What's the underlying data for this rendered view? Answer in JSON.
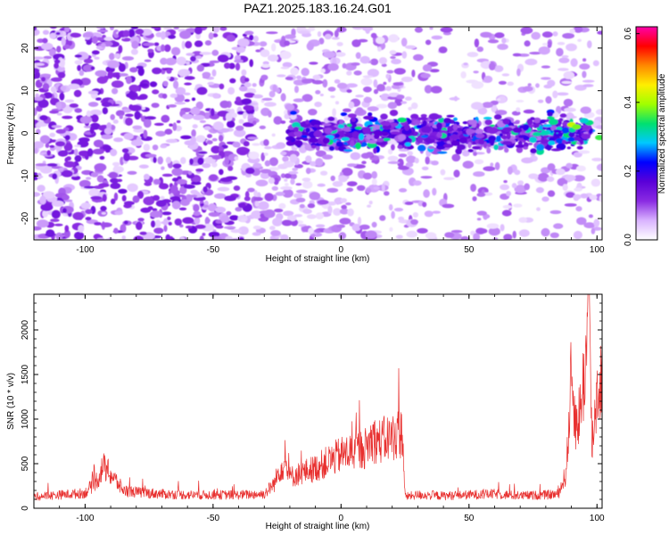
{
  "title": "PAZ1.2025.183.16.24.G01",
  "chart_data": [
    {
      "type": "heatmap",
      "xlabel": "Height of straight line (km)",
      "ylabel": "Frequency (Hz)",
      "xlim": [
        -120,
        102
      ],
      "ylim": [
        -25,
        25
      ],
      "xticks": [
        -100,
        -50,
        0,
        50,
        100
      ],
      "yticks": [
        -20,
        -10,
        0,
        10,
        20
      ],
      "colorbar": {
        "label": "Normalized spectral amplitude",
        "range": [
          0.0,
          0.62
        ],
        "ticks": [
          "0.0",
          "0.2",
          "0.4",
          "0.6"
        ],
        "colormap": [
          "#ffffff",
          "#d9b3ff",
          "#8a2be2",
          "#5a00d8",
          "#0000ff",
          "#00c8ff",
          "#00e070",
          "#a0ff00",
          "#ffee00",
          "#ff8800",
          "#ff0000",
          "#ff00aa"
        ]
      },
      "features": [
        {
          "x_range": [
            -120,
            -35
          ],
          "freq_range": [
            -25,
            25
          ],
          "amplitude": "0.05-0.15",
          "description": "broadband scattered energy"
        },
        {
          "x_range": [
            -35,
            30
          ],
          "freq_range": [
            -15,
            10
          ],
          "amplitude": "0.05-0.15",
          "description": "energy narrowing"
        },
        {
          "x_range": [
            -20,
            98
          ],
          "center_frequency": 0,
          "half_width_hz": 5,
          "peak_amplitude": 0.35
        },
        {
          "x_range": [
            85,
            102
          ],
          "center_frequency": 1.5,
          "peak_amplitude": 0.42
        }
      ]
    },
    {
      "type": "line",
      "xlabel": "Height of straight line (km)",
      "ylabel": "SNR (10 * v/v)",
      "xlim": [
        -120,
        102
      ],
      "ylim": [
        0,
        2400
      ],
      "xticks": [
        -100,
        -50,
        0,
        50,
        100
      ],
      "yticks": [
        0,
        500,
        1000,
        1500,
        2000
      ],
      "series": [
        {
          "color": "#e8302f",
          "x": [
            -120,
            -110,
            -100,
            -95,
            -93,
            -90,
            -85,
            -80,
            -70,
            -60,
            -50,
            -40,
            -30,
            -26,
            -24,
            -22,
            -20,
            -10,
            0,
            10,
            12,
            15,
            20,
            24,
            25,
            30,
            40,
            50,
            60,
            70,
            80,
            85,
            88,
            90,
            92,
            94,
            96,
            97,
            98,
            100,
            102
          ],
          "values": [
            130,
            150,
            170,
            330,
            470,
            380,
            200,
            180,
            160,
            150,
            150,
            150,
            160,
            280,
            440,
            500,
            350,
            450,
            600,
            680,
            780,
            750,
            800,
            850,
            130,
            150,
            140,
            150,
            160,
            140,
            150,
            160,
            400,
            1500,
            900,
            1200,
            1800,
            2300,
            700,
            1300,
            1500
          ]
        }
      ]
    }
  ]
}
